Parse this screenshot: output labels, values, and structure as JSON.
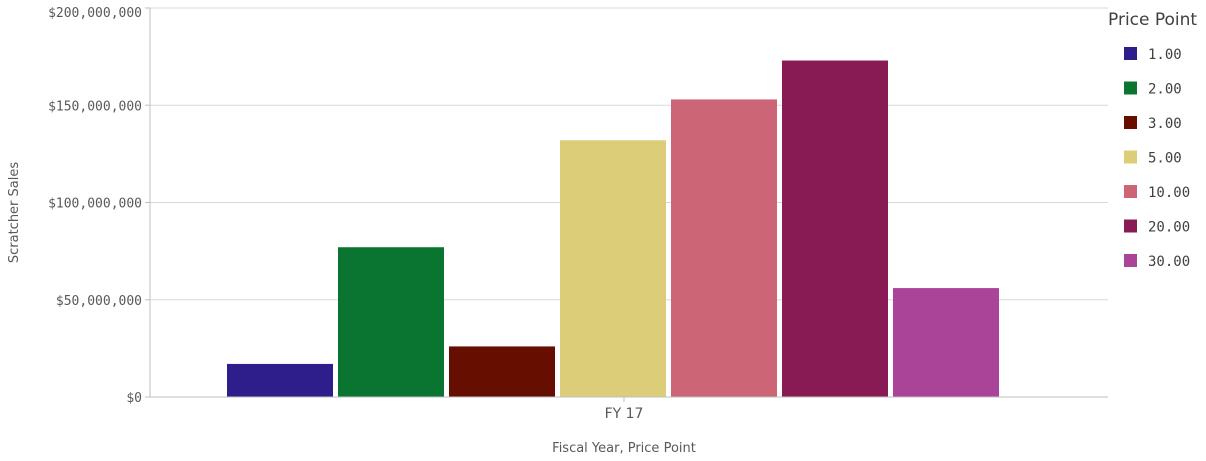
{
  "chart_data": {
    "type": "bar",
    "categories": [
      "FY 17"
    ],
    "series": [
      {
        "name": "1.00",
        "color": "#2e1e8c",
        "values": [
          17000000
        ]
      },
      {
        "name": "2.00",
        "color": "#0a7530",
        "values": [
          77000000
        ]
      },
      {
        "name": "3.00",
        "color": "#660e00",
        "values": [
          26000000
        ]
      },
      {
        "name": "5.00",
        "color": "#dccd79",
        "values": [
          132000000
        ]
      },
      {
        "name": "10.00",
        "color": "#cc6677",
        "values": [
          153000000
        ]
      },
      {
        "name": "20.00",
        "color": "#891b54",
        "values": [
          173000000
        ]
      },
      {
        "name": "30.00",
        "color": "#aa4499",
        "values": [
          56000000
        ]
      }
    ],
    "title": "",
    "xlabel": "Fiscal Year,  Price Point",
    "ylabel": "Scratcher Sales",
    "ylim": [
      0,
      200000000
    ],
    "yticks": [
      0,
      50000000,
      100000000,
      150000000,
      200000000
    ],
    "ytick_labels": [
      "$0",
      "$50,000,000",
      "$100,000,000",
      "$150,000,000",
      "$200,000,000"
    ],
    "grid": true,
    "legend": {
      "title": "Price Point",
      "placement": "right"
    }
  }
}
